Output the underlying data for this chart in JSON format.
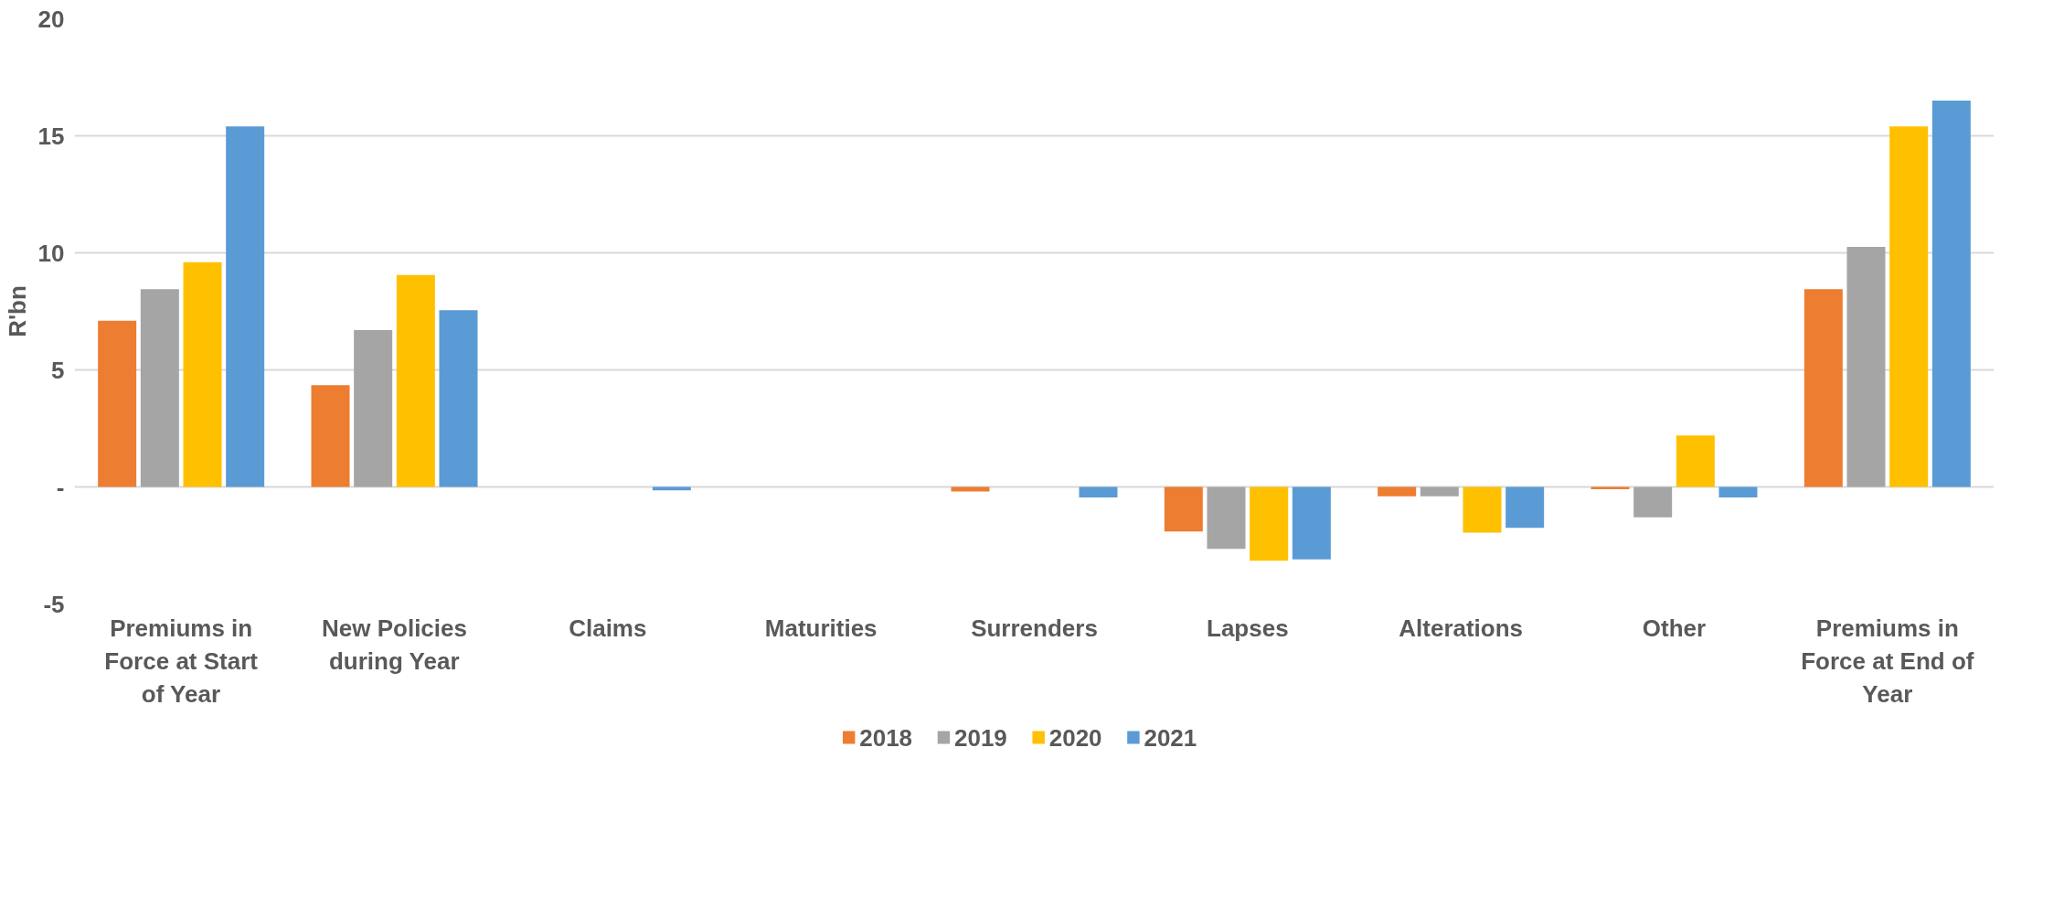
{
  "chart_data": {
    "type": "bar",
    "ylabel": "R'bn",
    "categories": [
      "Premiums in Force at Start of Year",
      "New Policies during Year",
      "Claims",
      "Maturities",
      "Surrenders",
      "Lapses",
      "Alterations",
      "Other",
      "Premiums in Force at End of Year"
    ],
    "series": [
      {
        "name": "2018",
        "color": "#ed7d31",
        "values": [
          7.1,
          4.35,
          0,
          0,
          -0.2,
          -1.9,
          -0.4,
          -0.1,
          8.45
        ]
      },
      {
        "name": "2019",
        "color": "#a5a5a5",
        "values": [
          8.45,
          6.7,
          0,
          0,
          0,
          -2.65,
          -0.4,
          -1.3,
          10.25
        ]
      },
      {
        "name": "2020",
        "color": "#ffc000",
        "values": [
          9.6,
          9.05,
          0,
          0,
          0,
          -3.15,
          -1.95,
          2.2,
          15.4
        ]
      },
      {
        "name": "2021",
        "color": "#5b9bd5",
        "values": [
          15.4,
          7.55,
          -0.15,
          0,
          -0.45,
          -3.1,
          -1.75,
          -0.45,
          16.5
        ]
      }
    ],
    "ylim": [
      -5,
      20
    ],
    "yticks": [
      -5,
      {
        "value": 0,
        "label": "-"
      },
      5,
      10,
      15,
      20
    ],
    "grid": "y",
    "legend": "bottom"
  }
}
